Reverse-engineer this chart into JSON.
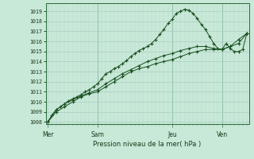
{
  "xlabel": "Pression niveau de la mer( hPa )",
  "ylim": [
    1007.8,
    1019.8
  ],
  "xlim": [
    -0.5,
    48.5
  ],
  "yticks": [
    1008,
    1009,
    1010,
    1011,
    1012,
    1013,
    1014,
    1015,
    1016,
    1017,
    1018,
    1019
  ],
  "day_labels": [
    "Mer",
    "Sam",
    "Jeu",
    "Ven"
  ],
  "day_positions": [
    0,
    12,
    30,
    42
  ],
  "vline_positions": [
    12,
    30,
    42
  ],
  "bg_color": "#c8e8d8",
  "grid_color_major": "#a8cfc0",
  "grid_color_minor": "#b8d8cc",
  "line_color": "#1a5020",
  "series1_x": [
    0,
    1,
    2,
    3,
    4,
    5,
    6,
    7,
    8,
    9,
    10,
    11,
    12,
    13,
    14,
    15,
    16,
    17,
    18,
    19,
    20,
    21,
    22,
    23,
    24,
    25,
    26,
    27,
    28,
    29,
    30,
    31,
    32,
    33,
    34,
    35,
    36,
    37,
    38,
    39,
    40,
    41,
    42,
    43,
    44,
    45,
    46,
    47,
    48
  ],
  "series1_y": [
    1008.0,
    1008.7,
    1009.2,
    1009.5,
    1009.8,
    1010.1,
    1010.3,
    1010.5,
    1010.7,
    1011.0,
    1011.2,
    1011.5,
    1011.8,
    1012.3,
    1012.8,
    1013.0,
    1013.3,
    1013.5,
    1013.8,
    1014.1,
    1014.5,
    1014.8,
    1015.1,
    1015.3,
    1015.5,
    1015.8,
    1016.2,
    1016.7,
    1017.2,
    1017.8,
    1018.2,
    1018.8,
    1019.0,
    1019.2,
    1019.1,
    1018.8,
    1018.3,
    1017.7,
    1017.2,
    1016.5,
    1015.8,
    1015.3,
    1015.2,
    1015.8,
    1015.3,
    1015.0,
    1015.0,
    1015.2,
    1016.8
  ],
  "series2_x": [
    0,
    2,
    4,
    6,
    8,
    10,
    12,
    14,
    16,
    18,
    20,
    22,
    24,
    26,
    28,
    30,
    32,
    34,
    36,
    38,
    40,
    42,
    44,
    46,
    48
  ],
  "series2_y": [
    1008.0,
    1009.0,
    1009.5,
    1010.0,
    1010.5,
    1010.8,
    1011.0,
    1011.5,
    1012.0,
    1012.5,
    1013.0,
    1013.3,
    1013.5,
    1013.8,
    1014.0,
    1014.2,
    1014.5,
    1014.8,
    1015.0,
    1015.2,
    1015.2,
    1015.2,
    1015.5,
    1015.8,
    1016.8
  ],
  "series3_x": [
    0,
    2,
    4,
    6,
    8,
    10,
    12,
    14,
    16,
    18,
    20,
    22,
    24,
    26,
    28,
    30,
    32,
    34,
    36,
    38,
    40,
    42,
    44,
    46,
    48
  ],
  "series3_y": [
    1008.0,
    1009.2,
    1009.8,
    1010.2,
    1010.6,
    1010.9,
    1011.2,
    1011.8,
    1012.3,
    1012.8,
    1013.2,
    1013.6,
    1014.0,
    1014.3,
    1014.6,
    1014.8,
    1015.1,
    1015.3,
    1015.5,
    1015.5,
    1015.3,
    1015.2,
    1015.5,
    1016.2,
    1016.8
  ]
}
